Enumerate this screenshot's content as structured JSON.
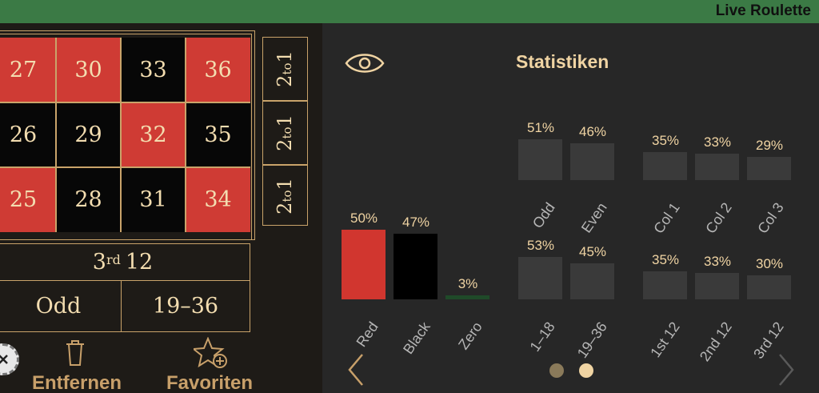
{
  "app": {
    "title": "Live Roulette"
  },
  "board": {
    "numbers": [
      {
        "n": "27",
        "color": "red"
      },
      {
        "n": "30",
        "color": "red"
      },
      {
        "n": "33",
        "color": "black"
      },
      {
        "n": "36",
        "color": "red"
      },
      {
        "n": "26",
        "color": "black"
      },
      {
        "n": "29",
        "color": "black"
      },
      {
        "n": "32",
        "color": "red"
      },
      {
        "n": "35",
        "color": "black"
      },
      {
        "n": "25",
        "color": "red"
      },
      {
        "n": "28",
        "color": "black"
      },
      {
        "n": "31",
        "color": "black"
      },
      {
        "n": "34",
        "color": "red"
      }
    ],
    "column_bet_main": "2",
    "column_bet_small": "to",
    "column_bet_end": "1",
    "dozen_prefix": "3",
    "dozen_sup": "rd",
    "dozen_suffix": "12",
    "odd_label": "Odd",
    "high_label": "19–36"
  },
  "actions": {
    "remove_label": "Entfernen",
    "favorites_label": "Favoriten"
  },
  "stats": {
    "title": "Statistiken",
    "colors": [
      {
        "label": "Red",
        "pct": "50%",
        "value": 50,
        "color": "#d1362f"
      },
      {
        "label": "Black",
        "pct": "47%",
        "value": 47,
        "color": "#000000"
      },
      {
        "label": "Zero",
        "pct": "3%",
        "value": 3,
        "color": "#1f4a29"
      }
    ],
    "groups": [
      {
        "label": "Odd",
        "pct": "51%",
        "value": 51
      },
      {
        "label": "Even",
        "pct": "46%",
        "value": 46
      },
      {
        "label": "Col 1",
        "pct": "35%",
        "value": 35
      },
      {
        "label": "Col 2",
        "pct": "33%",
        "value": 33
      },
      {
        "label": "Col 3",
        "pct": "29%",
        "value": 29
      },
      {
        "label": "1–18",
        "pct": "53%",
        "value": 53
      },
      {
        "label": "19–36",
        "pct": "45%",
        "value": 45
      },
      {
        "label": "1st 12",
        "pct": "35%",
        "value": 35
      },
      {
        "label": "2nd 12",
        "pct": "33%",
        "value": 33
      },
      {
        "label": "3rd 12",
        "pct": "30%",
        "value": 30
      }
    ],
    "page_indicator": {
      "pages": 2,
      "active": 2
    }
  },
  "icons": {
    "eye": "eye-icon",
    "trash": "trash-icon",
    "favorite": "star-plus-icon",
    "prev": "chevron-left-icon",
    "next": "chevron-right-icon",
    "chip": "close-chip-icon"
  }
}
